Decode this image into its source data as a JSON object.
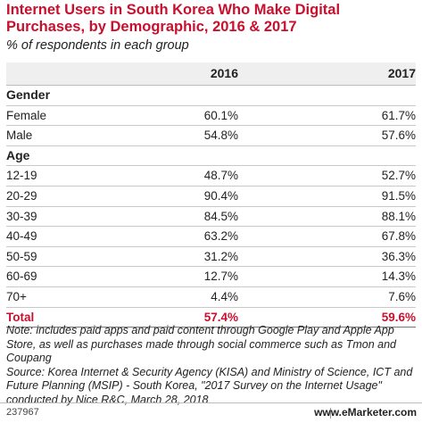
{
  "chart_data": {
    "type": "table",
    "title": "Internet Users in South Korea Who Make Digital Purchases, by Demographic, 2016 & 2017",
    "subtitle": "% of respondents in each group",
    "columns": [
      "2016",
      "2017"
    ],
    "groups": [
      {
        "name": "Gender",
        "rows": [
          {
            "label": "Female",
            "v2016": "60.1%",
            "v2017": "61.7%"
          },
          {
            "label": "Male",
            "v2016": "54.8%",
            "v2017": "57.6%"
          }
        ]
      },
      {
        "name": "Age",
        "rows": [
          {
            "label": "12-19",
            "v2016": "48.7%",
            "v2017": "52.7%"
          },
          {
            "label": "20-29",
            "v2016": "90.4%",
            "v2017": "91.5%"
          },
          {
            "label": "30-39",
            "v2016": "84.5%",
            "v2017": "88.1%"
          },
          {
            "label": "40-49",
            "v2016": "63.2%",
            "v2017": "67.8%"
          },
          {
            "label": "50-59",
            "v2016": "31.2%",
            "v2017": "36.3%"
          },
          {
            "label": "60-69",
            "v2016": "12.7%",
            "v2017": "14.3%"
          },
          {
            "label": "70+",
            "v2016": "4.4%",
            "v2017": "7.6%"
          }
        ]
      }
    ],
    "total": {
      "label": "Total",
      "v2016": "57.4%",
      "v2017": "59.6%"
    }
  },
  "note": "Note: includes paid apps and paid content through Google Play and Apple App Store, as well as purchases made through social commerce such as Tmon and Coupang",
  "source": "Source: Korea Internet & Security Agency (KISA) and Ministry of Science, ICT and Future Planning (MSIP) - South Korea, \"2017 Survey on the Internet Usage\" conducted by Nice R&C, March 28, 2018",
  "footer": {
    "id": "237967",
    "brand": "www.eMarketer.com"
  },
  "colors": {
    "accent": "#c8102e",
    "header_bg": "#efefef"
  }
}
